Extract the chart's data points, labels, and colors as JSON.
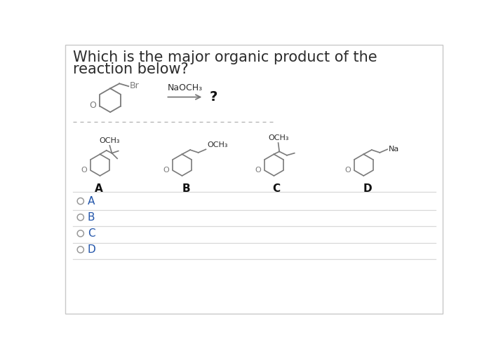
{
  "title_line1": "Which is the major organic product of the",
  "title_line2": "reaction below?",
  "title_color": "#2c2c2c",
  "title_fontsize": 15,
  "bg_color": "#ffffff",
  "border_color": "#c8c8c8",
  "structure_color": "#7a7a7a",
  "label_color": "#2c2c2c",
  "option_labels": [
    "A",
    "B",
    "C",
    "D"
  ],
  "reagent": "NaOCH₃",
  "question_mark": "?",
  "reactant_br": "Br"
}
